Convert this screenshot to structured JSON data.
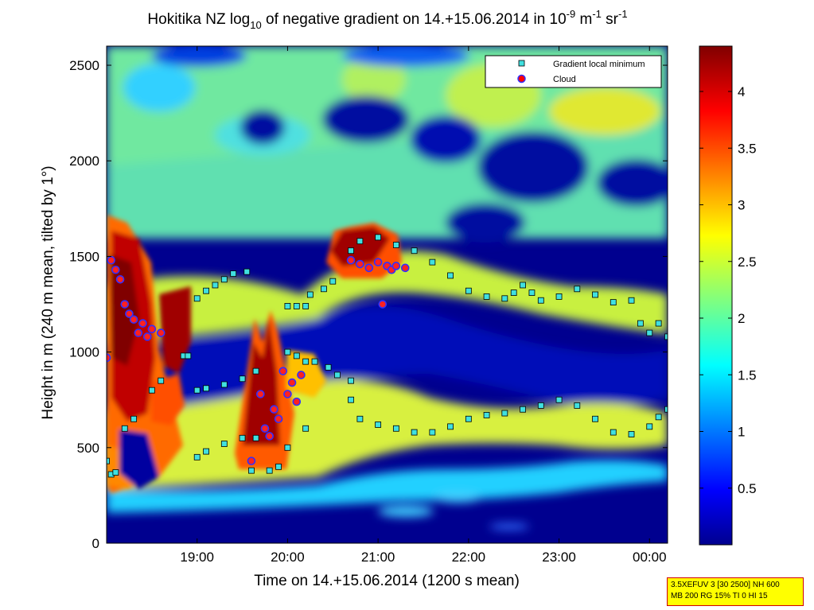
{
  "chart_data": {
    "type": "heatmap",
    "title_main": "Hokitika NZ log",
    "title_sub10": "10",
    "title_mid": " of negative gradient on 14.+15.06.2014 in 10",
    "title_supm9": "-9",
    "title_m": " m",
    "title_supm1a": "-1",
    "title_sr": " sr",
    "title_supm1b": "-1",
    "xlabel": "Time on 14.+15.06.2014 (1200 s mean)",
    "ylabel": "Height in m (240 m mean, tilted by 1°)",
    "x_ticks": [
      "19:00",
      "20:00",
      "21:00",
      "22:00",
      "23:00",
      "00:00"
    ],
    "x_tick_hours": [
      19,
      20,
      21,
      22,
      23,
      24
    ],
    "xlim_hours": [
      18.0,
      24.2
    ],
    "y_ticks": [
      "0",
      "500",
      "1000",
      "1500",
      "2000",
      "2500"
    ],
    "y_tick_values": [
      0,
      500,
      1000,
      1500,
      2000,
      2500
    ],
    "ylim": [
      0,
      2600
    ],
    "colorbar_ticks": [
      "0.5",
      "1",
      "1.5",
      "2",
      "2.5",
      "3",
      "3.5",
      "4"
    ],
    "colorbar_values": [
      0.5,
      1,
      1.5,
      2,
      2.5,
      3,
      3.5,
      4
    ],
    "colorbar_range": [
      0,
      4.4
    ],
    "colormap": "jet",
    "legend_position": "top-right",
    "legend": [
      {
        "name": "Gradient local minimum",
        "marker": "square",
        "color": "#40e0e0"
      },
      {
        "name": "Cloud",
        "marker": "circle",
        "color": "#ff0000",
        "edge": "#3030ff"
      }
    ],
    "series": [
      {
        "name": "Gradient local minimum",
        "points": [
          [
            18.0,
            430
          ],
          [
            18.05,
            360
          ],
          [
            18.1,
            370
          ],
          [
            18.2,
            600
          ],
          [
            18.3,
            650
          ],
          [
            18.5,
            800
          ],
          [
            18.6,
            850
          ],
          [
            18.85,
            980
          ],
          [
            18.9,
            980
          ],
          [
            19.0,
            800
          ],
          [
            19.1,
            810
          ],
          [
            19.3,
            830
          ],
          [
            19.5,
            860
          ],
          [
            19.65,
            900
          ],
          [
            19.0,
            450
          ],
          [
            19.1,
            480
          ],
          [
            19.3,
            520
          ],
          [
            19.5,
            550
          ],
          [
            19.65,
            550
          ],
          [
            19.0,
            1280
          ],
          [
            19.1,
            1320
          ],
          [
            19.2,
            1350
          ],
          [
            19.3,
            1380
          ],
          [
            19.4,
            1410
          ],
          [
            19.55,
            1420
          ],
          [
            19.6,
            380
          ],
          [
            19.8,
            380
          ],
          [
            19.9,
            400
          ],
          [
            20.0,
            500
          ],
          [
            20.2,
            600
          ],
          [
            20.0,
            1000
          ],
          [
            20.1,
            980
          ],
          [
            20.2,
            950
          ],
          [
            20.3,
            950
          ],
          [
            20.45,
            920
          ],
          [
            20.55,
            880
          ],
          [
            20.7,
            850
          ],
          [
            20.0,
            1240
          ],
          [
            20.1,
            1240
          ],
          [
            20.2,
            1240
          ],
          [
            20.25,
            1300
          ],
          [
            20.4,
            1330
          ],
          [
            20.5,
            1370
          ],
          [
            20.7,
            750
          ],
          [
            20.8,
            650
          ],
          [
            21.0,
            620
          ],
          [
            21.2,
            600
          ],
          [
            21.4,
            580
          ],
          [
            21.6,
            580
          ],
          [
            21.8,
            610
          ],
          [
            22.0,
            650
          ],
          [
            22.2,
            670
          ],
          [
            22.4,
            680
          ],
          [
            22.6,
            700
          ],
          [
            22.8,
            720
          ],
          [
            23.0,
            750
          ],
          [
            23.2,
            720
          ],
          [
            23.4,
            650
          ],
          [
            23.6,
            580
          ],
          [
            23.8,
            570
          ],
          [
            24.0,
            610
          ],
          [
            24.1,
            660
          ],
          [
            24.2,
            700
          ],
          [
            20.7,
            1530
          ],
          [
            20.8,
            1580
          ],
          [
            21.0,
            1600
          ],
          [
            21.2,
            1560
          ],
          [
            21.4,
            1530
          ],
          [
            21.6,
            1470
          ],
          [
            21.8,
            1400
          ],
          [
            22.0,
            1320
          ],
          [
            22.2,
            1290
          ],
          [
            22.4,
            1280
          ],
          [
            22.5,
            1310
          ],
          [
            22.6,
            1350
          ],
          [
            22.7,
            1310
          ],
          [
            22.8,
            1270
          ],
          [
            23.0,
            1290
          ],
          [
            23.2,
            1330
          ],
          [
            23.4,
            1300
          ],
          [
            23.6,
            1260
          ],
          [
            23.8,
            1270
          ],
          [
            23.9,
            1150
          ],
          [
            24.0,
            1100
          ],
          [
            24.1,
            1150
          ],
          [
            24.2,
            1080
          ]
        ]
      },
      {
        "name": "Cloud",
        "points": [
          [
            18.0,
            970
          ],
          [
            18.05,
            1480
          ],
          [
            18.1,
            1430
          ],
          [
            18.15,
            1380
          ],
          [
            18.2,
            1250
          ],
          [
            18.25,
            1200
          ],
          [
            18.3,
            1170
          ],
          [
            18.35,
            1100
          ],
          [
            18.4,
            1150
          ],
          [
            18.45,
            1080
          ],
          [
            18.5,
            1120
          ],
          [
            18.6,
            1100
          ],
          [
            19.6,
            430
          ],
          [
            19.7,
            780
          ],
          [
            19.75,
            600
          ],
          [
            19.8,
            560
          ],
          [
            19.85,
            700
          ],
          [
            19.9,
            650
          ],
          [
            19.95,
            900
          ],
          [
            20.0,
            780
          ],
          [
            20.05,
            840
          ],
          [
            20.1,
            740
          ],
          [
            20.15,
            880
          ],
          [
            20.7,
            1480
          ],
          [
            20.8,
            1460
          ],
          [
            20.9,
            1440
          ],
          [
            21.0,
            1470
          ],
          [
            21.05,
            1250
          ],
          [
            21.1,
            1450
          ],
          [
            21.15,
            1430
          ],
          [
            21.2,
            1450
          ],
          [
            21.3,
            1440
          ]
        ]
      }
    ]
  },
  "info_box": {
    "line1": "3.5XEFUV 3 [30 2500] NH 600",
    "line2": "MB 200 RG 15% TI 0 HI 15"
  }
}
